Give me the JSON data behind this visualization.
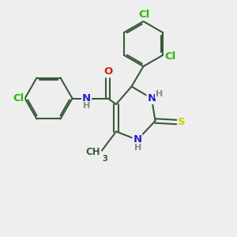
{
  "background_color": "#eeeeee",
  "bond_color": "#3a5a3a",
  "bond_width": 1.5,
  "atom_colors": {
    "Cl": "#22bb00",
    "N": "#2222cc",
    "O": "#cc2200",
    "S": "#cccc00",
    "H": "#888888",
    "C": "#3a5a3a"
  },
  "figsize": [
    3.0,
    3.0
  ],
  "dpi": 100,
  "xlim": [
    0,
    10
  ],
  "ylim": [
    0,
    10
  ]
}
